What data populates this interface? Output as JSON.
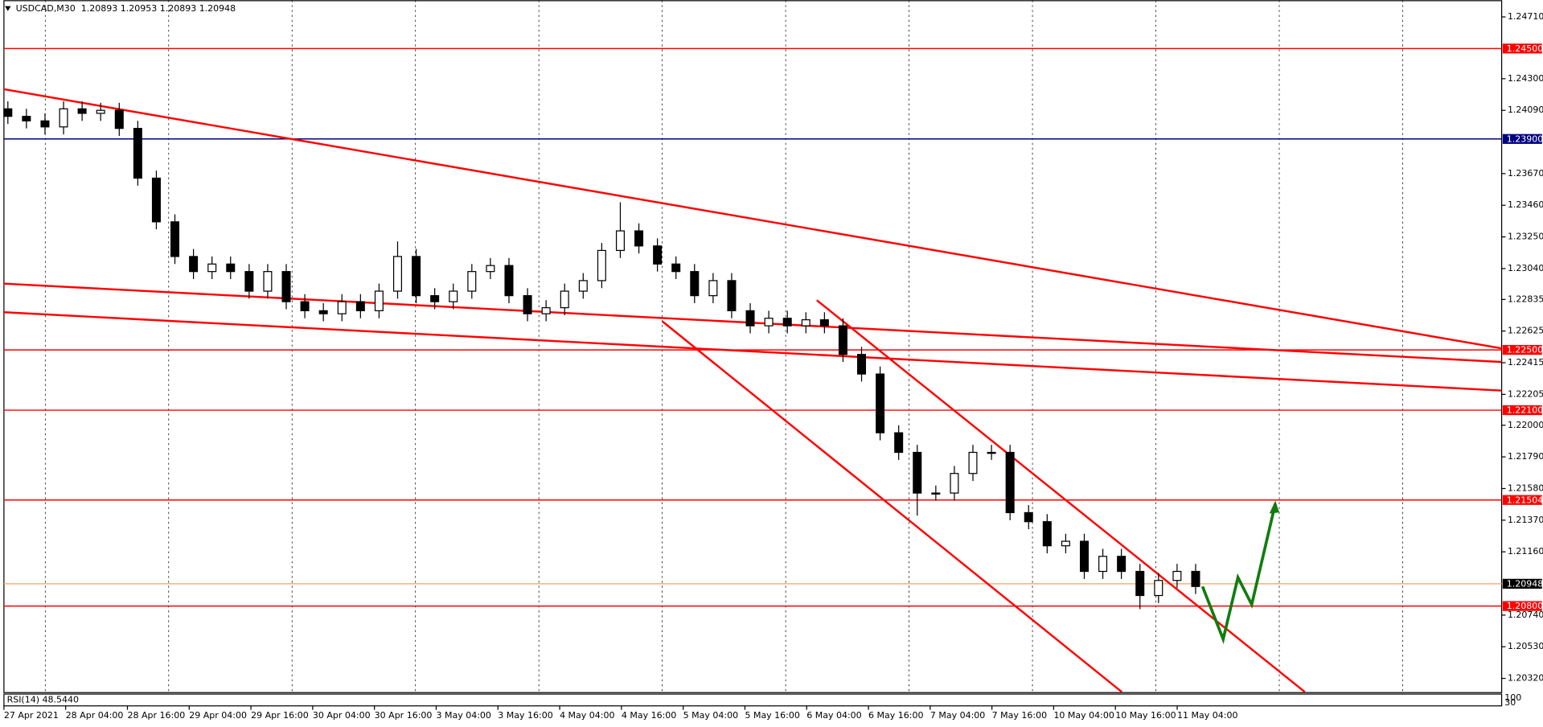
{
  "chart_data": {
    "type": "candlestick",
    "title": "USDCAD,M30  1.20893 1.20953 1.20893 1.20948",
    "indicator_label": "RSI(14) 48.5440",
    "indicator_scale": [
      "100",
      "30"
    ],
    "ylim": [
      1.20229,
      1.24821
    ],
    "yticks": [
      {
        "value": 1.2471,
        "label": "1.24710"
      },
      {
        "value": 1.243,
        "label": "1.24300"
      },
      {
        "value": 1.2409,
        "label": "1.24090"
      },
      {
        "value": 1.2367,
        "label": "1.23670"
      },
      {
        "value": 1.2346,
        "label": "1.23460"
      },
      {
        "value": 1.2325,
        "label": "1.23250"
      },
      {
        "value": 1.2304,
        "label": "1.23040"
      },
      {
        "value": 1.22835,
        "label": "1.22835"
      },
      {
        "value": 1.22625,
        "label": "1.22625"
      },
      {
        "value": 1.22415,
        "label": "1.22415"
      },
      {
        "value": 1.22205,
        "label": "1.22205"
      },
      {
        "value": 1.22,
        "label": "1.22000"
      },
      {
        "value": 1.2179,
        "label": "1.21790"
      },
      {
        "value": 1.2158,
        "label": "1.21580"
      },
      {
        "value": 1.2137,
        "label": "1.21370"
      },
      {
        "value": 1.2116,
        "label": "1.21160"
      },
      {
        "value": 1.2074,
        "label": "1.20740"
      },
      {
        "value": 1.2053,
        "label": "1.20530"
      },
      {
        "value": 1.2032,
        "label": "1.20320"
      }
    ],
    "xlabels": [
      "27 Apr 2021",
      "28 Apr 04:00",
      "28 Apr 16:00",
      "29 Apr 04:00",
      "29 Apr 16:00",
      "30 Apr 04:00",
      "30 Apr 16:00",
      "3 May 04:00",
      "3 May 16:00",
      "4 May 04:00",
      "4 May 16:00",
      "5 May 04:00",
      "5 May 16:00",
      "6 May 04:00",
      "6 May 16:00",
      "7 May 04:00",
      "7 May 16:00",
      "10 May 04:00",
      "10 May 16:00",
      "11 May 04:00"
    ],
    "candle_color": "#000000",
    "open": [
      1.241,
      1.2405,
      1.2402,
      1.2398,
      1.241,
      1.2407,
      1.2409,
      1.2397,
      1.2364,
      1.2335,
      1.2312,
      1.2302,
      1.2307,
      1.2302,
      1.2289,
      1.2302,
      1.2282,
      1.2276,
      1.2274,
      1.2282,
      1.2276,
      1.2289,
      1.2312,
      1.2286,
      1.2282,
      1.2289,
      1.2302,
      1.2306,
      1.2286,
      1.2274,
      1.2278,
      1.2289,
      1.2296,
      1.2316,
      1.2329,
      1.2319,
      1.2307,
      1.2302,
      1.2286,
      1.2296,
      1.2276,
      1.2266,
      1.2271,
      1.2266,
      1.227,
      1.2266,
      1.2247,
      1.2234,
      1.2195,
      1.2182,
      1.2155,
      1.2155,
      1.2168,
      1.2182,
      1.2182,
      1.2142,
      1.2136,
      1.212,
      1.2123,
      1.2103,
      1.2113,
      1.2103,
      1.2087,
      1.2097,
      1.2103
    ],
    "high": [
      1.2415,
      1.241,
      1.2407,
      1.2415,
      1.2415,
      1.2414,
      1.2414,
      1.2402,
      1.2369,
      1.234,
      1.2317,
      1.2312,
      1.2312,
      1.2307,
      1.2307,
      1.2307,
      1.2287,
      1.2281,
      1.2287,
      1.2287,
      1.2294,
      1.2322,
      1.2317,
      1.2291,
      1.2294,
      1.2307,
      1.2311,
      1.2311,
      1.2291,
      1.2283,
      1.2294,
      1.2301,
      1.2321,
      1.2348,
      1.2334,
      1.2324,
      1.2312,
      1.2307,
      1.2301,
      1.2301,
      1.2281,
      1.2276,
      1.2276,
      1.2275,
      1.2275,
      1.2271,
      1.2252,
      1.2239,
      1.22,
      1.2187,
      1.216,
      1.2173,
      1.2187,
      1.2187,
      1.2187,
      1.2147,
      1.2141,
      1.2128,
      1.2128,
      1.2118,
      1.2118,
      1.2108,
      1.2102,
      1.2108,
      1.2108
    ],
    "low": [
      1.24,
      1.2397,
      1.2393,
      1.2393,
      1.2402,
      1.2402,
      1.2392,
      1.2359,
      1.233,
      1.2307,
      1.2297,
      1.2297,
      1.2297,
      1.2284,
      1.2284,
      1.2277,
      1.2271,
      1.2269,
      1.2269,
      1.2271,
      1.2271,
      1.2284,
      1.2281,
      1.2277,
      1.2277,
      1.2284,
      1.2297,
      1.2281,
      1.2269,
      1.2269,
      1.2273,
      1.2284,
      1.2291,
      1.2311,
      1.2314,
      1.2302,
      1.2297,
      1.2281,
      1.2281,
      1.2271,
      1.2261,
      1.2261,
      1.2261,
      1.2261,
      1.2261,
      1.2242,
      1.2229,
      1.219,
      1.2177,
      1.214,
      1.215,
      1.215,
      1.2163,
      1.2177,
      1.2137,
      1.2131,
      1.2115,
      1.2115,
      1.2098,
      1.2098,
      1.2098,
      1.2078,
      1.2082,
      1.2092,
      1.2088
    ],
    "close": [
      1.2405,
      1.2402,
      1.2398,
      1.241,
      1.2407,
      1.2409,
      1.2397,
      1.2364,
      1.2335,
      1.2312,
      1.2302,
      1.2307,
      1.2302,
      1.2289,
      1.2302,
      1.2282,
      1.2276,
      1.2274,
      1.2282,
      1.2276,
      1.2289,
      1.2312,
      1.2286,
      1.2282,
      1.2289,
      1.2302,
      1.2306,
      1.2286,
      1.2274,
      1.2278,
      1.2289,
      1.2296,
      1.2316,
      1.2329,
      1.2319,
      1.2307,
      1.2302,
      1.2286,
      1.2296,
      1.2276,
      1.2266,
      1.2271,
      1.2266,
      1.227,
      1.2266,
      1.2247,
      1.2234,
      1.2195,
      1.2182,
      1.2155,
      1.2155,
      1.2168,
      1.2182,
      1.2182,
      1.2142,
      1.2136,
      1.212,
      1.2123,
      1.2103,
      1.2113,
      1.2103,
      1.2087,
      1.2097,
      1.2103,
      1.2093
    ],
    "hlines": [
      {
        "value": 1.245,
        "label": "1.24500",
        "color": "#ff0000",
        "box": "#ff0000"
      },
      {
        "value": 1.239,
        "label": "1.23900",
        "color": "#000080",
        "box": "#000080"
      },
      {
        "value": 1.225,
        "label": "1.22500",
        "color": "#ff0000",
        "box": "#ff0000"
      },
      {
        "value": 1.221,
        "label": "1.22100",
        "color": "#ff0000",
        "box": "#ff0000"
      },
      {
        "value": 1.21504,
        "label": "1.21504",
        "color": "#ff0000",
        "box": "#ff0000"
      },
      {
        "value": 1.20948,
        "label": "1.20948",
        "color": "#f4b183",
        "box": "#000000"
      },
      {
        "value": 1.208,
        "label": "1.20800",
        "color": "#ff0000",
        "box": "#ff0000"
      }
    ],
    "trendlines": [
      {
        "start": 1.2423,
        "end": 1.2251,
        "color": "#ff0000"
      },
      {
        "start": 1.2294,
        "end": 1.2242,
        "color": "#ff0000"
      },
      {
        "start": 1.2275,
        "end": 1.2223,
        "color": "#ff0000"
      },
      {
        "start": 1.2283,
        "end": 1.2023,
        "color": "#ff0000"
      },
      {
        "start": 1.2269,
        "end": 1.2023,
        "color": "#ff0000"
      }
    ],
    "projection": {
      "color": "#107c10",
      "values": [
        1.2093,
        1.2058,
        1.2099,
        1.2081,
        1.2148
      ]
    }
  }
}
